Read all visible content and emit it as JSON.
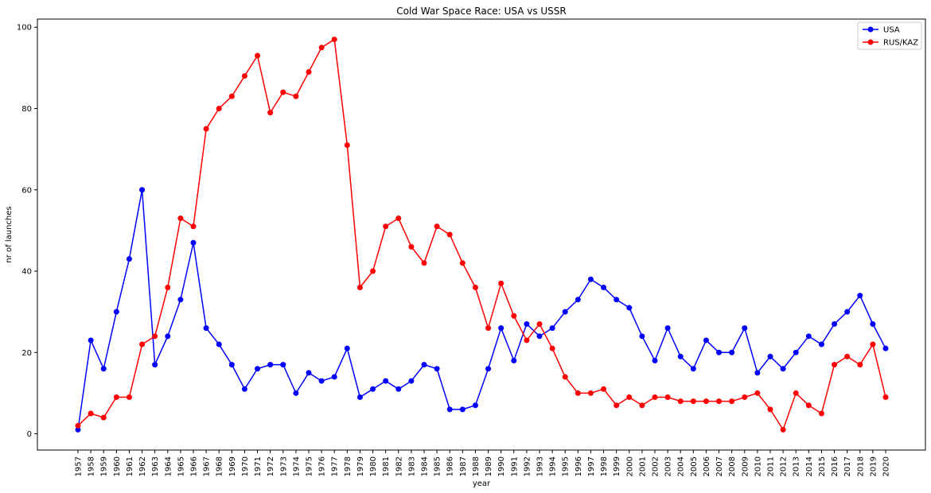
{
  "chart_data": {
    "type": "line",
    "title": "Cold War Space Race: USA vs USSR",
    "xlabel": "year",
    "ylabel": "nr of launches",
    "ylim": [
      -4,
      102
    ],
    "yticks": [
      0,
      20,
      40,
      60,
      80,
      100
    ],
    "legend_position": "top-right",
    "grid": false,
    "x": [
      1957,
      1958,
      1959,
      1960,
      1961,
      1962,
      1963,
      1964,
      1965,
      1966,
      1967,
      1968,
      1969,
      1970,
      1971,
      1972,
      1973,
      1974,
      1975,
      1976,
      1977,
      1978,
      1979,
      1980,
      1981,
      1982,
      1983,
      1984,
      1985,
      1986,
      1987,
      1988,
      1989,
      1990,
      1991,
      1992,
      1993,
      1994,
      1995,
      1996,
      1997,
      1998,
      1999,
      2000,
      2001,
      2002,
      2003,
      2004,
      2005,
      2006,
      2007,
      2008,
      2009,
      2010,
      2011,
      2012,
      2013,
      2014,
      2015,
      2016,
      2017,
      2018,
      2019,
      2020
    ],
    "series": [
      {
        "name": "USA",
        "color": "#0000ff",
        "values": [
          1,
          23,
          16,
          30,
          43,
          60,
          17,
          24,
          33,
          47,
          26,
          22,
          17,
          11,
          16,
          17,
          17,
          10,
          15,
          13,
          14,
          21,
          9,
          11,
          13,
          11,
          13,
          17,
          16,
          6,
          6,
          7,
          16,
          26,
          18,
          27,
          24,
          26,
          30,
          33,
          38,
          36,
          33,
          31,
          24,
          18,
          26,
          19,
          16,
          23,
          20,
          20,
          26,
          15,
          19,
          16,
          20,
          24,
          22,
          27,
          30,
          34,
          27,
          21
        ]
      },
      {
        "name": "RUS/KAZ",
        "color": "#ff0000",
        "values": [
          2,
          5,
          4,
          9,
          9,
          22,
          24,
          36,
          53,
          51,
          75,
          80,
          83,
          88,
          93,
          79,
          84,
          83,
          89,
          95,
          97,
          71,
          36,
          40,
          51,
          53,
          46,
          42,
          51,
          49,
          42,
          36,
          26,
          37,
          29,
          23,
          27,
          21,
          14,
          10,
          10,
          11,
          7,
          9,
          7,
          9,
          9,
          8,
          8,
          8,
          8,
          8,
          9,
          10,
          6,
          1,
          10,
          7,
          5,
          17,
          19,
          17,
          22,
          9
        ]
      }
    ]
  }
}
